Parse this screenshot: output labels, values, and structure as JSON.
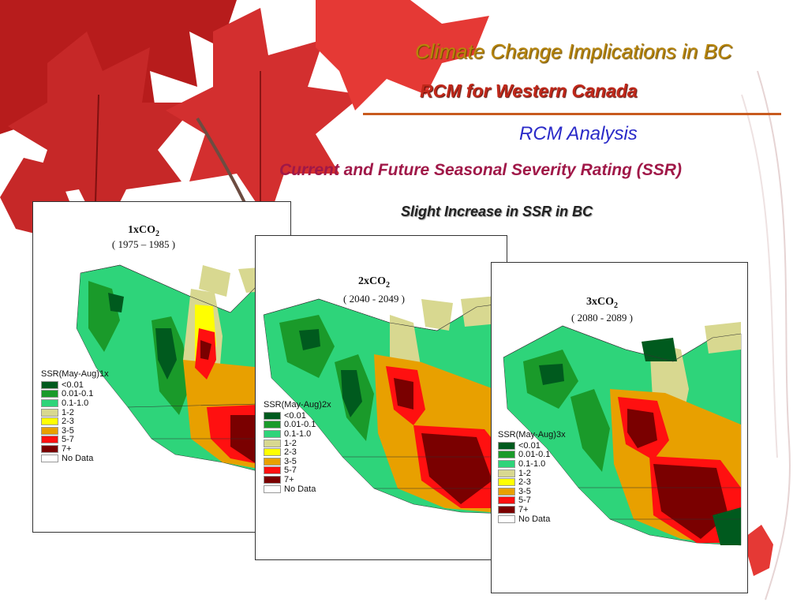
{
  "header": {
    "title": "Climate Change Implications in BC",
    "subtitle": "RCM for Western Canada",
    "section": "RCM Analysis",
    "topic": "Current and Future Seasonal Severity Rating (SSR)",
    "finding": "Slight Increase  in SSR in BC"
  },
  "legend_colors": {
    "lt_0_01": "#005a1e",
    "c0_01_0_1": "#1a9a2a",
    "c0_1_1_0": "#2ed47a",
    "c1_2": "#d8d890",
    "c2_3": "#ffff00",
    "c3_5": "#e8a000",
    "c5_7": "#ff1010",
    "c7_plus": "#7a0000",
    "no_data": "#ffffff"
  },
  "panels": [
    {
      "title_prefix": "1x",
      "gas": "CO",
      "sub": "2",
      "period": "( 1975 – 1985 )",
      "legend_title": "SSR(May-Aug)1x",
      "legend": [
        "<0.01",
        "0.01-0.1",
        "0.1-1.0",
        "1-2",
        "2-3",
        "3-5",
        "5-7",
        "7+",
        "No Data"
      ]
    },
    {
      "title_prefix": "2x",
      "gas": "CO",
      "sub": "2",
      "period": "( 2040 - 2049 )",
      "legend_title": "SSR(May-Aug)2x",
      "legend": [
        "<0.01",
        "0.01-0.1",
        "0.1-1.0",
        "1-2",
        "2-3",
        "3-5",
        "5-7",
        "7+",
        "No Data"
      ]
    },
    {
      "title_prefix": "3x",
      "gas": "CO",
      "sub": "2",
      "period": "( 2080 - 2089 )",
      "legend_title": "SSR(May-Aug)3x",
      "legend": [
        "<0.01",
        "0.01-0.1",
        "0.1-1.0",
        "1-2",
        "2-3",
        "3-5",
        "5-7",
        "7+",
        "No Data"
      ]
    }
  ]
}
